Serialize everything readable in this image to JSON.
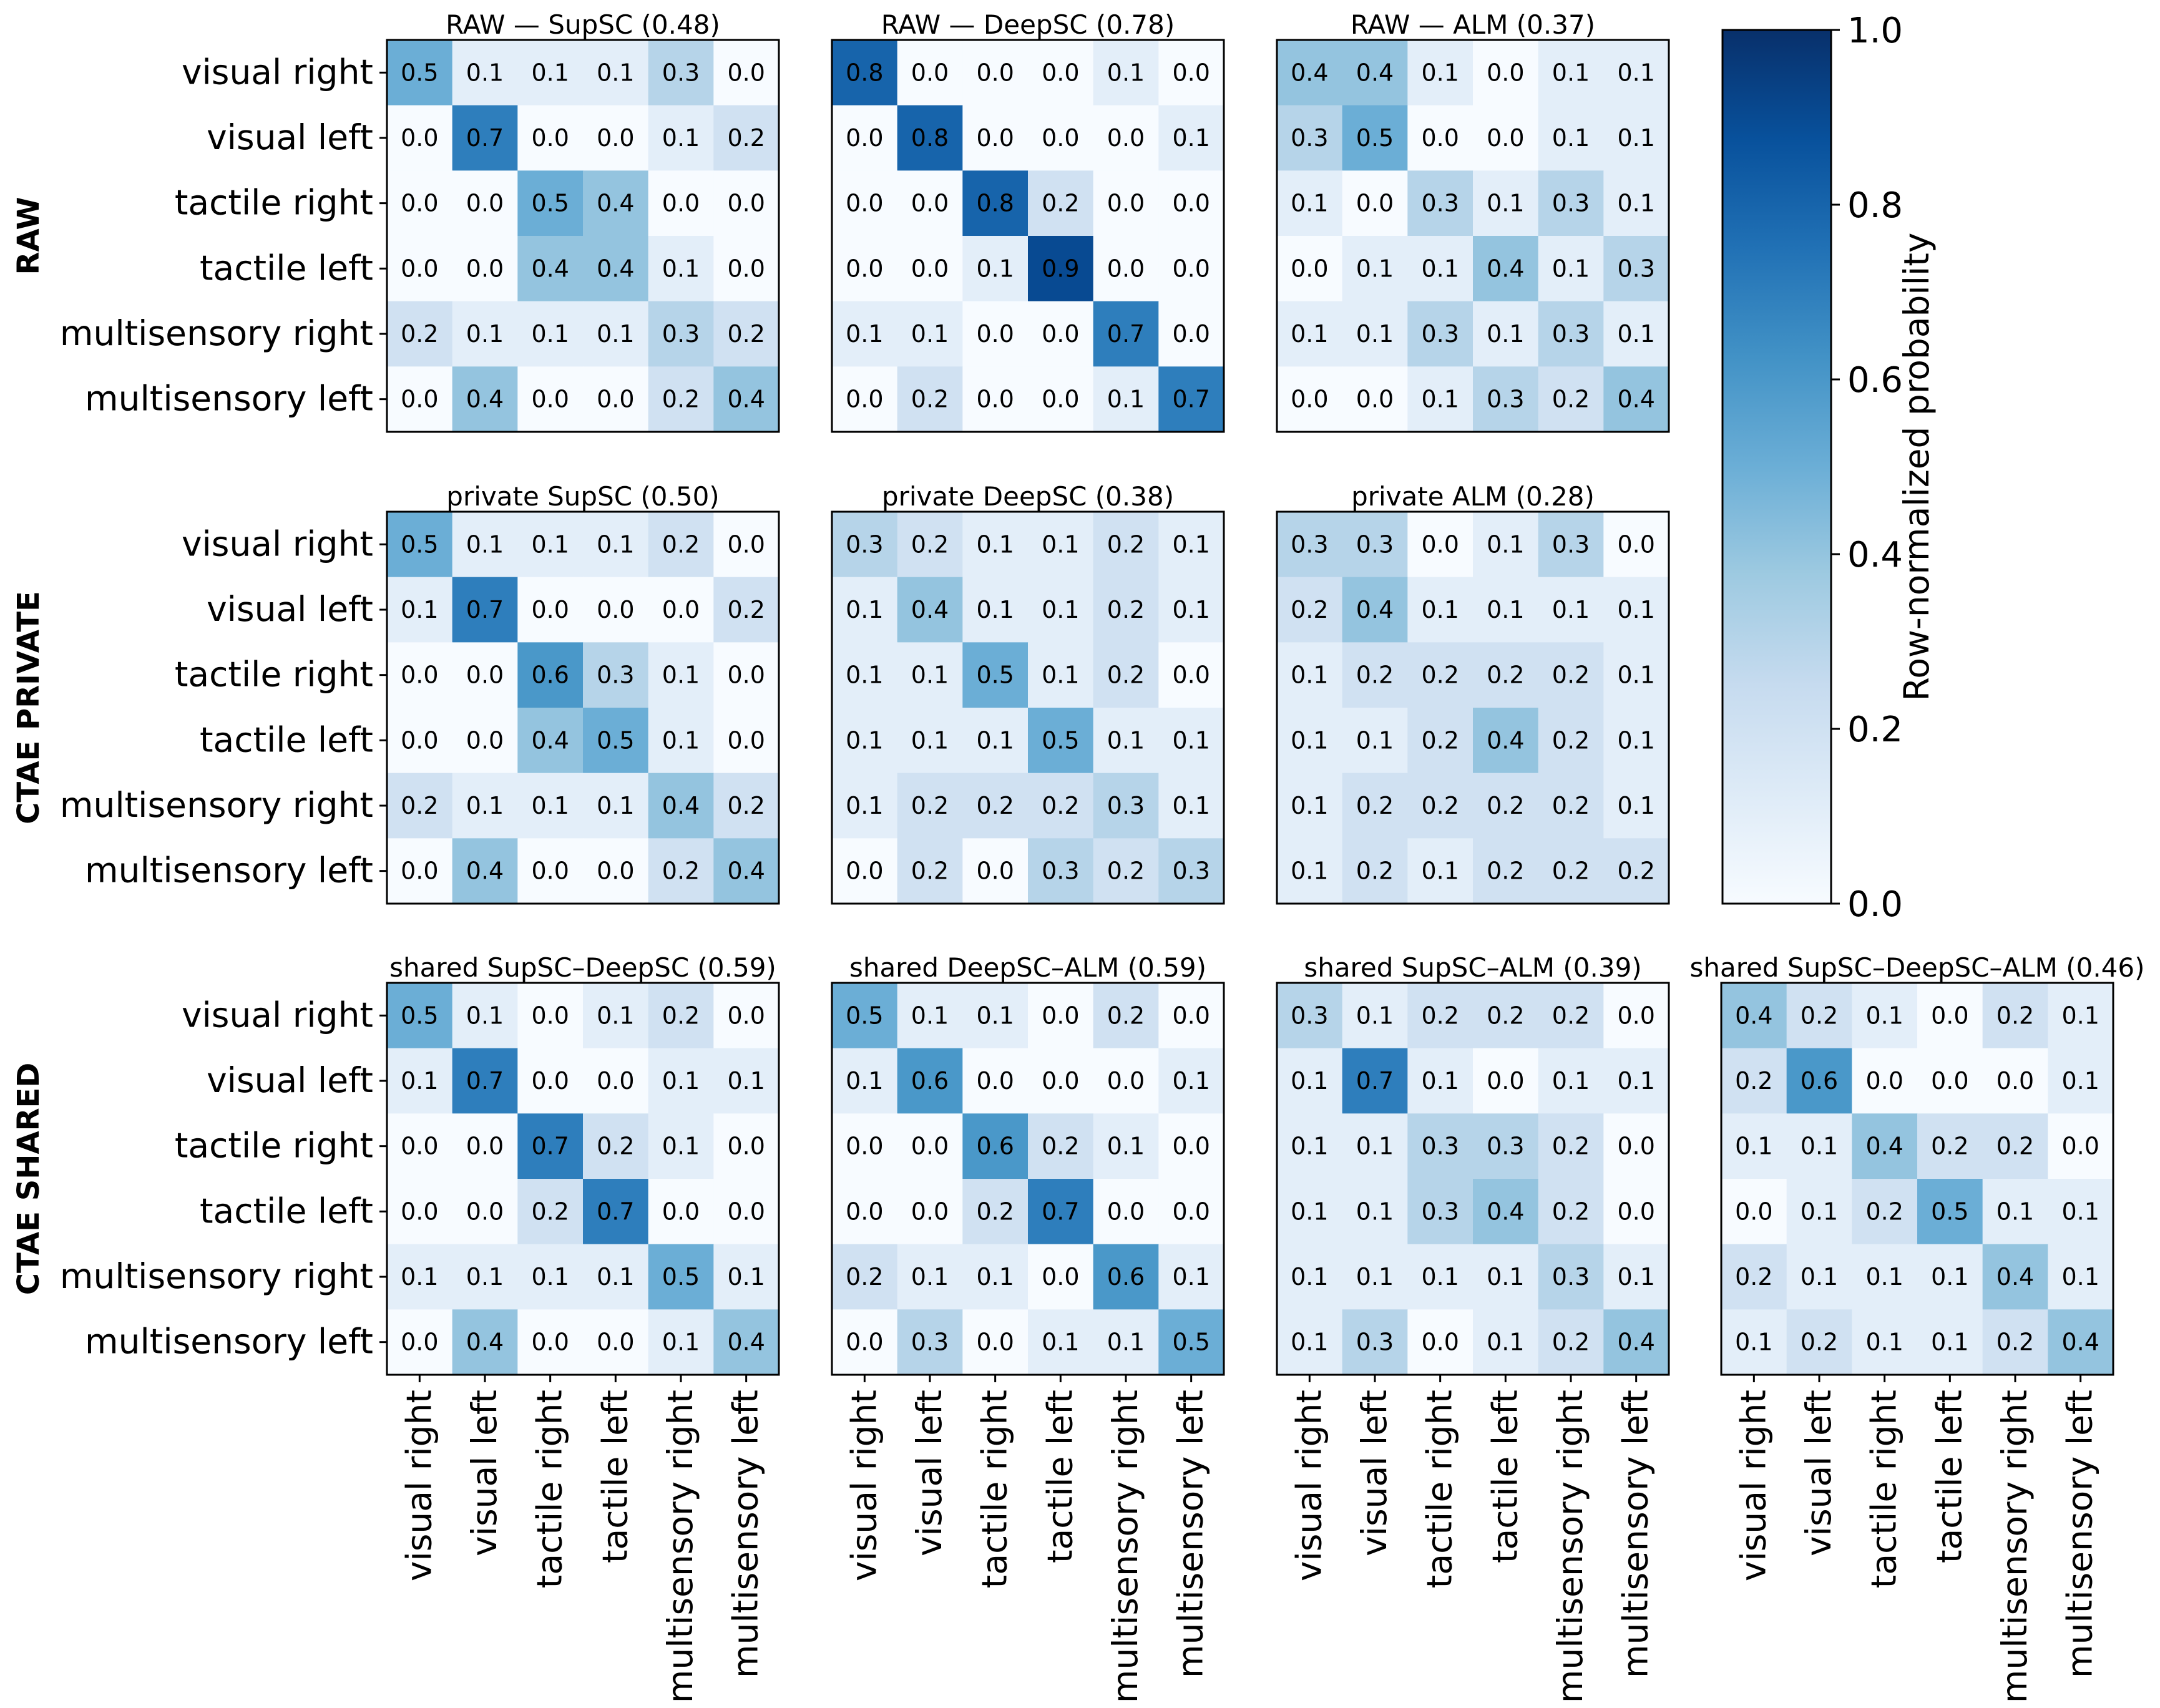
{
  "chart_data": {
    "type": "heatmap",
    "categories": [
      "visual right",
      "visual left",
      "tactile right",
      "tactile left",
      "multisensory right",
      "multisensory left"
    ],
    "row_labels": [
      "RAW",
      "CTAE PRIVATE",
      "CTAE SHARED"
    ],
    "colorbar": {
      "label": "Row-normalized probability",
      "range": [
        0.0,
        1.0
      ],
      "ticks": [
        "0.0",
        "0.2",
        "0.4",
        "0.6",
        "0.8",
        "1.0"
      ],
      "colors": [
        "#f7fbff",
        "#08306b"
      ]
    },
    "panels": [
      {
        "title": "RAW — SupSC (0.48)",
        "matrix": [
          [
            0.5,
            0.1,
            0.1,
            0.1,
            0.3,
            0.0
          ],
          [
            0.0,
            0.7,
            0.0,
            0.0,
            0.1,
            0.2
          ],
          [
            0.0,
            0.0,
            0.5,
            0.4,
            0.0,
            0.0
          ],
          [
            0.0,
            0.0,
            0.4,
            0.4,
            0.1,
            0.0
          ],
          [
            0.2,
            0.1,
            0.1,
            0.1,
            0.3,
            0.2
          ],
          [
            0.0,
            0.4,
            0.0,
            0.0,
            0.2,
            0.4
          ]
        ]
      },
      {
        "title": "RAW — DeepSC (0.78)",
        "matrix": [
          [
            0.8,
            0.0,
            0.0,
            0.0,
            0.1,
            0.0
          ],
          [
            0.0,
            0.8,
            0.0,
            0.0,
            0.0,
            0.1
          ],
          [
            0.0,
            0.0,
            0.8,
            0.2,
            0.0,
            0.0
          ],
          [
            0.0,
            0.0,
            0.1,
            0.9,
            0.0,
            0.0
          ],
          [
            0.1,
            0.1,
            0.0,
            0.0,
            0.7,
            0.0
          ],
          [
            0.0,
            0.2,
            0.0,
            0.0,
            0.1,
            0.7
          ]
        ]
      },
      {
        "title": "RAW — ALM (0.37)",
        "matrix": [
          [
            0.4,
            0.4,
            0.1,
            0.0,
            0.1,
            0.1
          ],
          [
            0.3,
            0.5,
            0.0,
            0.0,
            0.1,
            0.1
          ],
          [
            0.1,
            0.0,
            0.3,
            0.1,
            0.3,
            0.1
          ],
          [
            0.0,
            0.1,
            0.1,
            0.4,
            0.1,
            0.3
          ],
          [
            0.1,
            0.1,
            0.3,
            0.1,
            0.3,
            0.1
          ],
          [
            0.0,
            0.0,
            0.1,
            0.3,
            0.2,
            0.4
          ]
        ]
      },
      {
        "title": "private SupSC (0.50)",
        "matrix": [
          [
            0.5,
            0.1,
            0.1,
            0.1,
            0.2,
            0.0
          ],
          [
            0.1,
            0.7,
            0.0,
            0.0,
            0.0,
            0.2
          ],
          [
            0.0,
            0.0,
            0.6,
            0.3,
            0.1,
            0.0
          ],
          [
            0.0,
            0.0,
            0.4,
            0.5,
            0.1,
            0.0
          ],
          [
            0.2,
            0.1,
            0.1,
            0.1,
            0.4,
            0.2
          ],
          [
            0.0,
            0.4,
            0.0,
            0.0,
            0.2,
            0.4
          ]
        ]
      },
      {
        "title": "private DeepSC (0.38)",
        "matrix": [
          [
            0.3,
            0.2,
            0.1,
            0.1,
            0.2,
            0.1
          ],
          [
            0.1,
            0.4,
            0.1,
            0.1,
            0.2,
            0.1
          ],
          [
            0.1,
            0.1,
            0.5,
            0.1,
            0.2,
            0.0
          ],
          [
            0.1,
            0.1,
            0.1,
            0.5,
            0.1,
            0.1
          ],
          [
            0.1,
            0.2,
            0.2,
            0.2,
            0.3,
            0.1
          ],
          [
            0.0,
            0.2,
            0.0,
            0.3,
            0.2,
            0.3
          ]
        ]
      },
      {
        "title": "private ALM (0.28)",
        "matrix": [
          [
            0.3,
            0.3,
            0.0,
            0.1,
            0.3,
            0.0
          ],
          [
            0.2,
            0.4,
            0.1,
            0.1,
            0.1,
            0.1
          ],
          [
            0.1,
            0.2,
            0.2,
            0.2,
            0.2,
            0.1
          ],
          [
            0.1,
            0.1,
            0.2,
            0.4,
            0.2,
            0.1
          ],
          [
            0.1,
            0.2,
            0.2,
            0.2,
            0.2,
            0.1
          ],
          [
            0.1,
            0.2,
            0.1,
            0.2,
            0.2,
            0.2
          ]
        ]
      },
      {
        "title": "shared SupSC–DeepSC (0.59)",
        "matrix": [
          [
            0.5,
            0.1,
            0.0,
            0.1,
            0.2,
            0.0
          ],
          [
            0.1,
            0.7,
            0.0,
            0.0,
            0.1,
            0.1
          ],
          [
            0.0,
            0.0,
            0.7,
            0.2,
            0.1,
            0.0
          ],
          [
            0.0,
            0.0,
            0.2,
            0.7,
            0.0,
            0.0
          ],
          [
            0.1,
            0.1,
            0.1,
            0.1,
            0.5,
            0.1
          ],
          [
            0.0,
            0.4,
            0.0,
            0.0,
            0.1,
            0.4
          ]
        ]
      },
      {
        "title": "shared DeepSC–ALM (0.59)",
        "matrix": [
          [
            0.5,
            0.1,
            0.1,
            0.0,
            0.2,
            0.0
          ],
          [
            0.1,
            0.6,
            0.0,
            0.0,
            0.0,
            0.1
          ],
          [
            0.0,
            0.0,
            0.6,
            0.2,
            0.1,
            0.0
          ],
          [
            0.0,
            0.0,
            0.2,
            0.7,
            0.0,
            0.0
          ],
          [
            0.2,
            0.1,
            0.1,
            0.0,
            0.6,
            0.1
          ],
          [
            0.0,
            0.3,
            0.0,
            0.1,
            0.1,
            0.5
          ]
        ]
      },
      {
        "title": "shared SupSC–ALM (0.39)",
        "matrix": [
          [
            0.3,
            0.1,
            0.2,
            0.2,
            0.2,
            0.0
          ],
          [
            0.1,
            0.7,
            0.1,
            0.0,
            0.1,
            0.1
          ],
          [
            0.1,
            0.1,
            0.3,
            0.3,
            0.2,
            0.0
          ],
          [
            0.1,
            0.1,
            0.3,
            0.4,
            0.2,
            0.0
          ],
          [
            0.1,
            0.1,
            0.1,
            0.1,
            0.3,
            0.1
          ],
          [
            0.1,
            0.3,
            0.0,
            0.1,
            0.2,
            0.4
          ]
        ]
      },
      {
        "title": "shared SupSC–DeepSC–ALM (0.46)",
        "matrix": [
          [
            0.4,
            0.2,
            0.1,
            0.0,
            0.2,
            0.1
          ],
          [
            0.2,
            0.6,
            0.0,
            0.0,
            0.0,
            0.1
          ],
          [
            0.1,
            0.1,
            0.4,
            0.2,
            0.2,
            0.0
          ],
          [
            0.0,
            0.1,
            0.2,
            0.5,
            0.1,
            0.1
          ],
          [
            0.2,
            0.1,
            0.1,
            0.1,
            0.4,
            0.1
          ],
          [
            0.1,
            0.2,
            0.1,
            0.1,
            0.2,
            0.4
          ]
        ]
      }
    ]
  }
}
